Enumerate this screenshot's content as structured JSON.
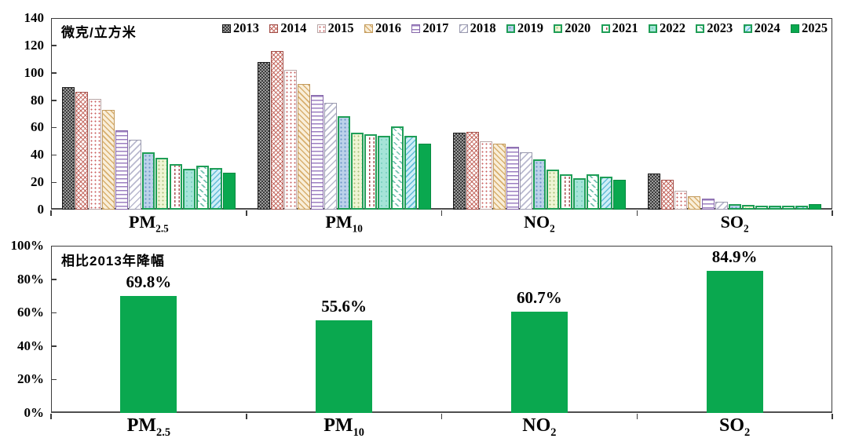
{
  "chart_data": [
    {
      "type": "bar",
      "role": "concentration-by-year",
      "unit_label": "微克/立方米",
      "ylim": [
        0,
        140
      ],
      "grid": false,
      "legend_position": "top-inside",
      "yticks": [
        {
          "v": 0,
          "label": "0"
        },
        {
          "v": 20,
          "label": "20"
        },
        {
          "v": 40,
          "label": "40"
        },
        {
          "v": 60,
          "label": "60"
        },
        {
          "v": 80,
          "label": "80"
        },
        {
          "v": 100,
          "label": "100"
        },
        {
          "v": 120,
          "label": "120"
        },
        {
          "v": 140,
          "label": "140"
        }
      ],
      "categories": [
        {
          "id": "pm25",
          "main": "PM",
          "sub": "2.5"
        },
        {
          "id": "pm10",
          "main": "PM",
          "sub": "10"
        },
        {
          "id": "no2",
          "main": "NO",
          "sub": "2"
        },
        {
          "id": "so2",
          "main": "SO",
          "sub": "2"
        }
      ],
      "series": [
        {
          "year": "2013",
          "values": [
            89.5,
            108,
            56,
            26.5
          ],
          "pattern": "p2013",
          "border": "#1a1a1a",
          "bw": 1
        },
        {
          "year": "2014",
          "values": [
            86,
            116,
            57,
            22
          ],
          "pattern": "p2014",
          "border": "#a34f49",
          "bw": 1
        },
        {
          "year": "2015",
          "values": [
            81,
            102,
            50,
            13.5
          ],
          "pattern": "p2015",
          "border": "#b9a6a6",
          "bw": 1
        },
        {
          "year": "2016",
          "values": [
            73,
            92,
            48,
            10
          ],
          "pattern": "p2016",
          "border": "#c29a5c",
          "bw": 1
        },
        {
          "year": "2017",
          "values": [
            58,
            84,
            46,
            8
          ],
          "pattern": "p2017",
          "border": "#8668aa",
          "bw": 1
        },
        {
          "year": "2018",
          "values": [
            51,
            78,
            42,
            6
          ],
          "pattern": "p2018",
          "border": "#9a9aae",
          "bw": 1
        },
        {
          "year": "2019",
          "values": [
            42,
            68,
            37,
            4
          ],
          "pattern": "p2019",
          "border": "#1f9e57",
          "bw": 2
        },
        {
          "year": "2020",
          "values": [
            38,
            56,
            29,
            3.5
          ],
          "pattern": "p2020",
          "border": "#1f9e57",
          "bw": 2
        },
        {
          "year": "2021",
          "values": [
            33,
            55,
            26,
            3
          ],
          "pattern": "p2021",
          "border": "#1f9e57",
          "bw": 2
        },
        {
          "year": "2022",
          "values": [
            30,
            54,
            23,
            3
          ],
          "pattern": "p2022",
          "border": "#1f9e57",
          "bw": 2
        },
        {
          "year": "2023",
          "values": [
            32,
            61,
            26,
            3
          ],
          "pattern": "p2023",
          "border": "#1f9e57",
          "bw": 2
        },
        {
          "year": "2024",
          "values": [
            30.5,
            54,
            24,
            3
          ],
          "pattern": "p2024",
          "border": "#1f9e57",
          "bw": 2
        },
        {
          "year": "2025",
          "values": [
            27,
            48,
            22,
            4
          ],
          "pattern": "p2025",
          "border": "#078a41",
          "bw": 1
        }
      ]
    },
    {
      "type": "bar",
      "role": "decline-vs-2013",
      "title": "相比2013年降幅",
      "ylim": [
        0,
        100
      ],
      "grid": false,
      "bar_color": "#0aa84f",
      "yticks": [
        {
          "v": 0,
          "label": "0%"
        },
        {
          "v": 20,
          "label": "20%"
        },
        {
          "v": 40,
          "label": "40%"
        },
        {
          "v": 60,
          "label": "60%"
        },
        {
          "v": 80,
          "label": "80%"
        },
        {
          "v": 100,
          "label": "100%"
        }
      ],
      "bars": [
        {
          "category": "PM2.5",
          "value": 69.8,
          "label": "69.8%"
        },
        {
          "category": "PM10",
          "value": 55.6,
          "label": "55.6%"
        },
        {
          "category": "NO2",
          "value": 60.7,
          "label": "60.7%"
        },
        {
          "category": "SO2",
          "value": 84.9,
          "label": "84.9%"
        }
      ]
    }
  ],
  "colors": {
    "accent_green": "#0aa84f",
    "green_border": "#1f9e57",
    "axis": "#3c3c3c"
  }
}
